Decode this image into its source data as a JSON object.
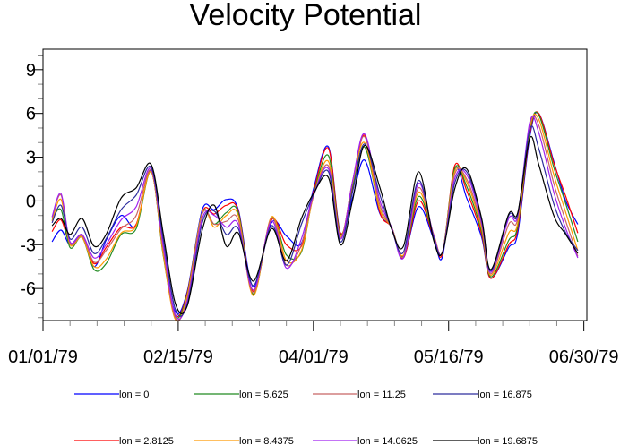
{
  "chart_data": {
    "type": "line",
    "title": "Velocity Potential",
    "xlabel": "",
    "ylabel": "",
    "xlim": [
      0,
      181
    ],
    "ylim": [
      -8.2,
      10.4
    ],
    "xticks": [
      {
        "day": 0,
        "label": "01/01/79"
      },
      {
        "day": 45,
        "label": "02/15/79"
      },
      {
        "day": 90,
        "label": "04/01/79"
      },
      {
        "day": 135,
        "label": "05/16/79"
      },
      {
        "day": 180,
        "label": "06/30/79"
      }
    ],
    "x_minor_step": 9,
    "yticks": [
      {
        "value": -6,
        "label": "-6"
      },
      {
        "value": -3,
        "label": "-3"
      },
      {
        "value": 0,
        "label": "0"
      },
      {
        "value": 3,
        "label": "3"
      },
      {
        "value": 6,
        "label": "6"
      },
      {
        "value": 9,
        "label": "9"
      }
    ],
    "y_minor_step": 1,
    "grid": false,
    "legend_placement": "bottom",
    "x": [
      3,
      6,
      9,
      13,
      17,
      21,
      26,
      31,
      36,
      40,
      44,
      48,
      53,
      57,
      61,
      65,
      70,
      76,
      81,
      86,
      90,
      95,
      99,
      103,
      107,
      112,
      116,
      120,
      125,
      130,
      133,
      137,
      141,
      146,
      149,
      155,
      158,
      162,
      165,
      170,
      174,
      178
    ],
    "series": [
      {
        "name": "lon = 0",
        "color": "#0000ff",
        "values": [
          -2.8,
          -2.0,
          -3.0,
          -2.4,
          -4.5,
          -2.7,
          -1.0,
          -1.7,
          2.1,
          -3.5,
          -7.6,
          -6.2,
          -0.6,
          -0.6,
          0.1,
          -0.6,
          -5.9,
          -1.5,
          -2.4,
          -2.9,
          0.8,
          3.7,
          -2.2,
          0.2,
          2.8,
          -0.8,
          -1.8,
          -3.8,
          -0.4,
          -2.6,
          -3.8,
          2.2,
          0.2,
          -2.5,
          -5.3,
          -3.2,
          -2.2,
          4.4,
          6.0,
          2.7,
          0.0,
          -1.6
        ]
      },
      {
        "name": "lon = 2.8125",
        "color": "#ff0000",
        "values": [
          -2.1,
          -1.3,
          -2.9,
          -2.5,
          -4.3,
          -3.2,
          -1.8,
          -1.6,
          2.0,
          -3.6,
          -7.8,
          -6.3,
          -0.8,
          -0.9,
          -0.3,
          -0.7,
          -6.2,
          -1.3,
          -3.0,
          -3.1,
          0.6,
          3.6,
          -2.2,
          0.8,
          4.5,
          -0.7,
          -1.8,
          -3.9,
          0.0,
          -2.5,
          -3.6,
          2.4,
          0.7,
          -2.3,
          -5.3,
          -3.0,
          -1.9,
          4.6,
          6.0,
          2.6,
          0.3,
          -2.2
        ]
      },
      {
        "name": "lon = 5.625",
        "color": "#228b22",
        "values": [
          -1.3,
          -0.6,
          -3.2,
          -2.5,
          -4.7,
          -4.3,
          -2.3,
          -1.9,
          2.0,
          -3.7,
          -7.9,
          -6.4,
          -0.8,
          -1.6,
          -0.8,
          -0.8,
          -6.4,
          -1.2,
          -3.7,
          -3.5,
          0.4,
          3.1,
          -2.3,
          1.0,
          3.7,
          -0.5,
          -1.8,
          -3.8,
          0.3,
          -2.4,
          -3.5,
          2.2,
          1.0,
          -2.1,
          -5.2,
          -2.7,
          -1.7,
          4.8,
          5.9,
          2.3,
          -0.2,
          -2.8
        ]
      },
      {
        "name": "lon = 8.4375",
        "color": "#ff9900",
        "values": [
          -1.4,
          0.1,
          -3.0,
          -2.5,
          -4.5,
          -4.0,
          -2.2,
          -1.7,
          2.0,
          -3.6,
          -8.1,
          -6.5,
          -0.8,
          -1.8,
          -1.0,
          -1.0,
          -6.5,
          -1.1,
          -4.1,
          -3.4,
          0.3,
          2.7,
          -2.4,
          1.2,
          4.0,
          -0.5,
          -1.8,
          -3.7,
          0.6,
          -2.3,
          -3.5,
          2.0,
          1.3,
          -1.9,
          -5.1,
          -2.2,
          -1.5,
          5.0,
          5.6,
          1.8,
          -0.8,
          -3.4
        ]
      },
      {
        "name": "lon = 11.25",
        "color": "#c86464",
        "values": [
          -1.2,
          0.4,
          -2.9,
          -2.4,
          -4.2,
          -3.4,
          -1.9,
          -1.0,
          2.1,
          -3.3,
          -8.0,
          -6.7,
          -0.9,
          -1.6,
          -1.4,
          -1.3,
          -6.3,
          -1.2,
          -4.4,
          -3.0,
          0.3,
          2.4,
          -2.5,
          1.3,
          4.4,
          -0.2,
          -1.8,
          -3.8,
          0.9,
          -2.3,
          -3.5,
          1.8,
          1.5,
          -1.7,
          -5.0,
          -1.6,
          -1.2,
          5.2,
          5.2,
          1.2,
          -1.4,
          -3.8
        ]
      },
      {
        "name": "lon = 14.0625",
        "color": "#a020f0",
        "values": [
          -1.1,
          0.5,
          -2.8,
          -2.3,
          -3.9,
          -3.0,
          -1.3,
          -0.4,
          2.2,
          -3.0,
          -7.8,
          -6.9,
          -1.2,
          -1.0,
          -1.8,
          -1.6,
          -6.1,
          -1.4,
          -4.6,
          -2.6,
          0.4,
          2.2,
          -2.6,
          1.3,
          4.6,
          0.1,
          -1.8,
          -3.9,
          1.2,
          -2.4,
          -3.5,
          1.5,
          1.8,
          -1.5,
          -4.9,
          -1.2,
          -1.0,
          5.4,
          4.7,
          0.6,
          -1.9,
          -3.9
        ]
      },
      {
        "name": "lon = 16.875",
        "color": "#2d2d9e",
        "values": [
          -1.5,
          -0.3,
          -2.6,
          -1.8,
          -3.6,
          -2.6,
          -0.6,
          0.4,
          2.3,
          -2.6,
          -7.4,
          -7.1,
          -1.5,
          -0.7,
          -2.3,
          -1.9,
          -5.8,
          -1.7,
          -4.4,
          -1.6,
          0.4,
          2.0,
          -2.8,
          0.6,
          3.9,
          0.5,
          -1.9,
          -3.5,
          1.4,
          -2.5,
          -3.5,
          1.2,
          2.0,
          -1.3,
          -4.8,
          -1.0,
          -0.9,
          4.9,
          3.6,
          -0.2,
          -2.2,
          -3.4
        ]
      },
      {
        "name": "lon = 19.6875",
        "color": "#000000",
        "values": [
          -1.7,
          -1.2,
          -2.3,
          -1.2,
          -3.1,
          -2.3,
          0.2,
          0.9,
          2.5,
          -2.2,
          -7.0,
          -7.2,
          -2.0,
          -0.3,
          -3.1,
          -2.2,
          -5.5,
          -1.9,
          -4.1,
          -1.2,
          0.5,
          1.6,
          -3.0,
          0.0,
          3.8,
          1.0,
          -1.9,
          -3.1,
          2.0,
          -2.7,
          -3.5,
          0.8,
          2.2,
          -1.2,
          -4.7,
          -0.9,
          -0.8,
          4.3,
          2.5,
          -1.0,
          -2.3,
          -3.6
        ]
      }
    ],
    "legend_order": [
      0,
      2,
      4,
      6,
      1,
      3,
      5,
      7
    ]
  }
}
